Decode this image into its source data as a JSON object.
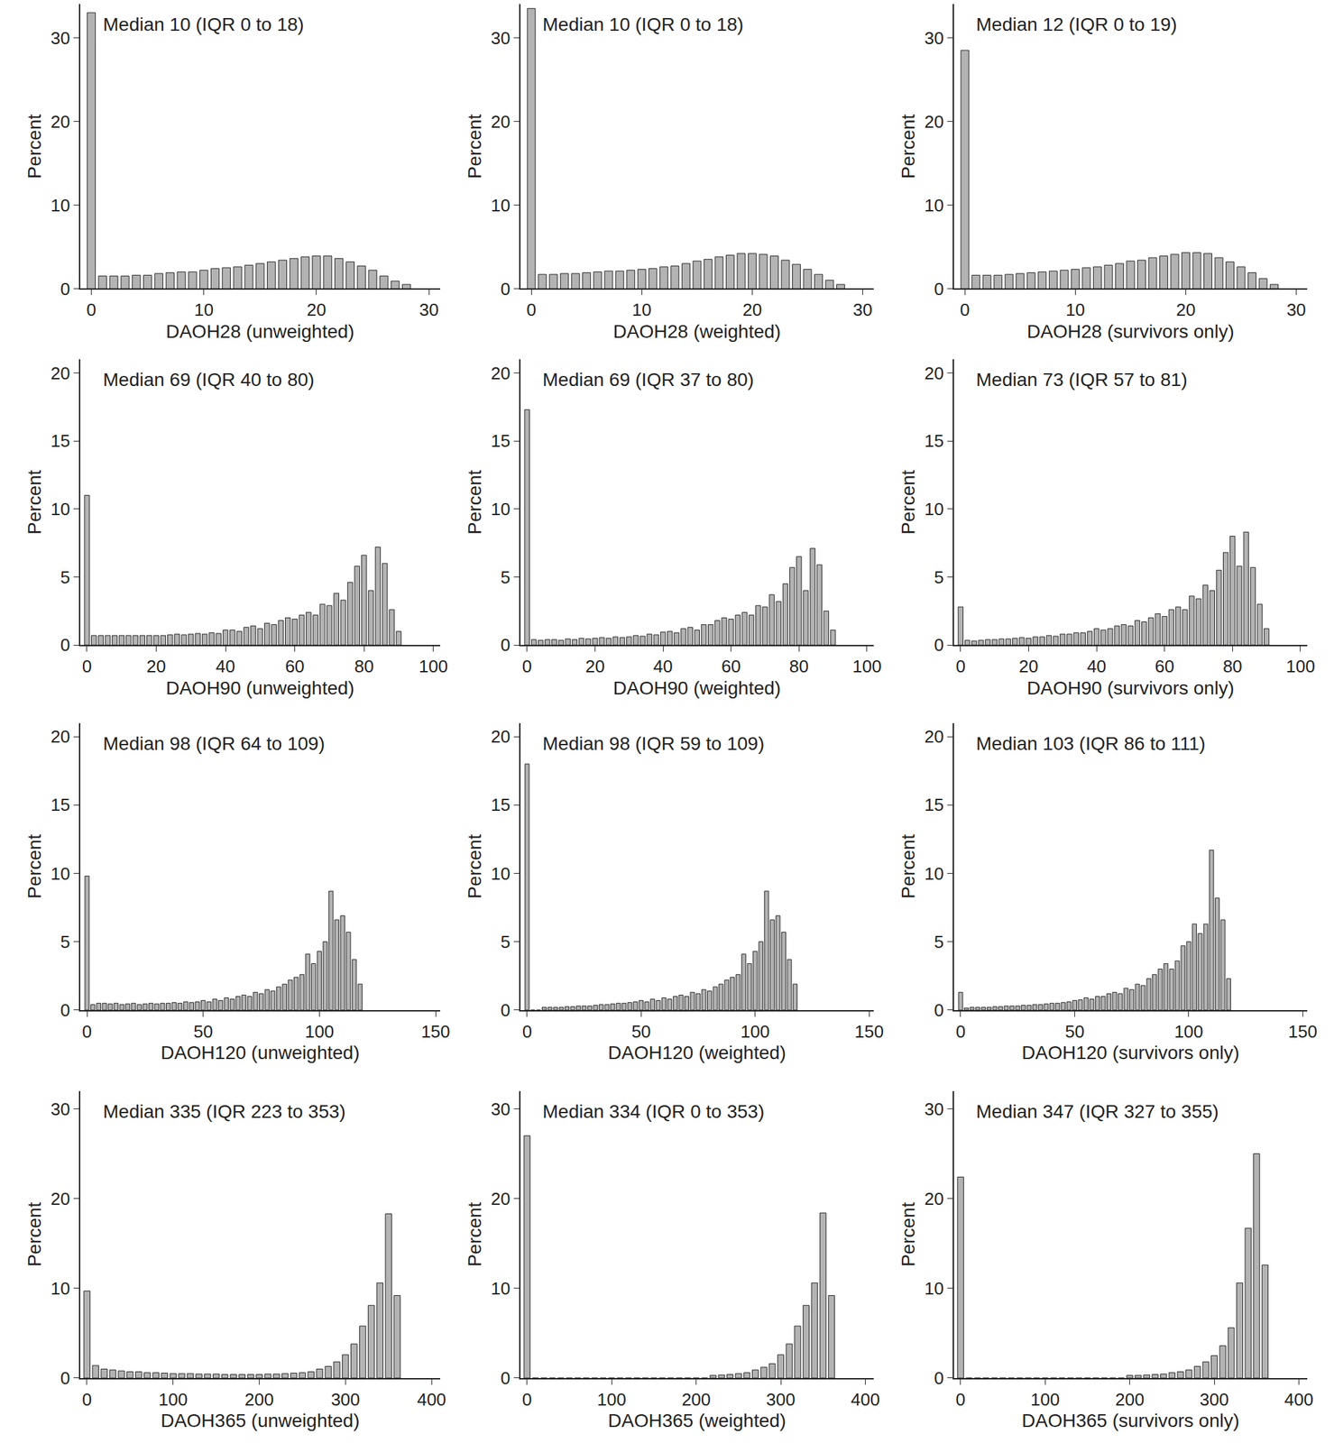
{
  "chart_data": [
    {
      "type": "histogram",
      "annotation": "Median 10 (IQR 0 to 18)",
      "x_label": "DAOH28 (unweighted)",
      "y_label": "Percent",
      "color": "#b3b3b3",
      "bins": [
        -0.5,
        0.5,
        1.5,
        2.5,
        3.5,
        4.5,
        5.5,
        6.5,
        7.5,
        8.5,
        9.5,
        10.5,
        11.5,
        12.5,
        13.5,
        14.5,
        15.5,
        16.5,
        17.5,
        18.5,
        19.5,
        20.5,
        21.5,
        22.5,
        23.5,
        24.5,
        25.5,
        26.5,
        27.5,
        28.5
      ],
      "values": [
        33,
        1.5,
        1.5,
        1.5,
        1.6,
        1.6,
        1.8,
        1.9,
        2.0,
        2.0,
        2.2,
        2.4,
        2.5,
        2.6,
        2.8,
        3.0,
        3.2,
        3.4,
        3.6,
        3.8,
        3.9,
        3.9,
        3.6,
        3.2,
        2.7,
        2.2,
        1.5,
        0.9,
        0.5
      ],
      "xlim": [
        -1,
        31
      ],
      "xticks": [
        0,
        10,
        20,
        30
      ],
      "ylim": [
        0,
        34
      ],
      "yticks": [
        0,
        10,
        20,
        30
      ]
    },
    {
      "type": "histogram",
      "annotation": "Median 10 (IQR 0 to 18)",
      "x_label": "DAOH28 (weighted)",
      "y_label": "Percent",
      "color": "#b3b3b3",
      "bins": [
        -0.5,
        0.5,
        1.5,
        2.5,
        3.5,
        4.5,
        5.5,
        6.5,
        7.5,
        8.5,
        9.5,
        10.5,
        11.5,
        12.5,
        13.5,
        14.5,
        15.5,
        16.5,
        17.5,
        18.5,
        19.5,
        20.5,
        21.5,
        22.5,
        23.5,
        24.5,
        25.5,
        26.5,
        27.5,
        28.5
      ],
      "values": [
        33.5,
        1.7,
        1.7,
        1.8,
        1.8,
        1.9,
        2.0,
        2.1,
        2.1,
        2.2,
        2.3,
        2.4,
        2.6,
        2.7,
        3.0,
        3.3,
        3.5,
        3.8,
        4.0,
        4.2,
        4.2,
        4.1,
        3.9,
        3.4,
        2.9,
        2.3,
        1.7,
        1.0,
        0.5
      ],
      "xlim": [
        -1,
        31
      ],
      "xticks": [
        0,
        10,
        20,
        30
      ],
      "ylim": [
        0,
        34
      ],
      "yticks": [
        0,
        10,
        20,
        30
      ]
    },
    {
      "type": "histogram",
      "annotation": "Median 12 (IQR 0 to 19)",
      "x_label": "DAOH28 (survivors only)",
      "y_label": "Percent",
      "color": "#b3b3b3",
      "bins": [
        -0.5,
        0.5,
        1.5,
        2.5,
        3.5,
        4.5,
        5.5,
        6.5,
        7.5,
        8.5,
        9.5,
        10.5,
        11.5,
        12.5,
        13.5,
        14.5,
        15.5,
        16.5,
        17.5,
        18.5,
        19.5,
        20.5,
        21.5,
        22.5,
        23.5,
        24.5,
        25.5,
        26.5,
        27.5,
        28.5
      ],
      "values": [
        28.5,
        1.6,
        1.6,
        1.6,
        1.7,
        1.8,
        1.9,
        2.0,
        2.1,
        2.2,
        2.3,
        2.5,
        2.6,
        2.8,
        3.0,
        3.3,
        3.4,
        3.7,
        3.9,
        4.1,
        4.3,
        4.3,
        4.2,
        3.7,
        3.2,
        2.6,
        1.9,
        1.2,
        0.5
      ],
      "xlim": [
        -1,
        31
      ],
      "xticks": [
        0,
        10,
        20,
        30
      ],
      "ylim": [
        0,
        34
      ],
      "yticks": [
        0,
        10,
        20,
        30
      ]
    },
    {
      "type": "histogram",
      "annotation": "Median 69 (IQR 40 to 80)",
      "x_label": "DAOH90 (unweighted)",
      "y_label": "Percent",
      "color": "#b3b3b3",
      "bins": [
        -1,
        1,
        3,
        5,
        7,
        9,
        11,
        13,
        15,
        17,
        19,
        21,
        23,
        25,
        27,
        29,
        31,
        33,
        35,
        37,
        39,
        41,
        43,
        45,
        47,
        49,
        51,
        53,
        55,
        57,
        59,
        61,
        63,
        65,
        67,
        69,
        71,
        73,
        75,
        77,
        79,
        81,
        83,
        85,
        87,
        89,
        91
      ],
      "values": [
        11,
        0.7,
        0.7,
        0.7,
        0.7,
        0.7,
        0.7,
        0.7,
        0.7,
        0.7,
        0.7,
        0.7,
        0.75,
        0.8,
        0.75,
        0.8,
        0.85,
        0.8,
        0.9,
        0.85,
        1.1,
        1.1,
        1.0,
        1.3,
        1.4,
        1.2,
        1.6,
        1.5,
        1.8,
        2.0,
        1.9,
        2.2,
        2.4,
        2.2,
        3.0,
        2.9,
        3.8,
        3.3,
        4.6,
        5.8,
        6.6,
        4.0,
        7.2,
        6.0,
        2.6,
        1.0
      ],
      "xlim": [
        -2,
        102
      ],
      "xticks": [
        0,
        20,
        40,
        60,
        80,
        100
      ],
      "ylim": [
        0,
        21
      ],
      "yticks": [
        0,
        5,
        10,
        15,
        20
      ]
    },
    {
      "type": "histogram",
      "annotation": "Median 69 (IQR 37 to 80)",
      "x_label": "DAOH90 (weighted)",
      "y_label": "Percent",
      "color": "#b3b3b3",
      "bins": [
        -1,
        1,
        3,
        5,
        7,
        9,
        11,
        13,
        15,
        17,
        19,
        21,
        23,
        25,
        27,
        29,
        31,
        33,
        35,
        37,
        39,
        41,
        43,
        45,
        47,
        49,
        51,
        53,
        55,
        57,
        59,
        61,
        63,
        65,
        67,
        69,
        71,
        73,
        75,
        77,
        79,
        81,
        83,
        85,
        87,
        89,
        91
      ],
      "values": [
        17.3,
        0.4,
        0.35,
        0.4,
        0.4,
        0.35,
        0.45,
        0.4,
        0.5,
        0.45,
        0.5,
        0.55,
        0.5,
        0.6,
        0.55,
        0.6,
        0.7,
        0.65,
        0.8,
        0.75,
        0.95,
        1.0,
        0.9,
        1.2,
        1.3,
        1.1,
        1.5,
        1.5,
        1.8,
        2.0,
        1.9,
        2.2,
        2.4,
        2.2,
        2.9,
        2.8,
        3.7,
        3.2,
        4.5,
        5.7,
        6.5,
        4.0,
        7.1,
        5.9,
        2.5,
        1.1
      ],
      "xlim": [
        -2,
        102
      ],
      "xticks": [
        0,
        20,
        40,
        60,
        80,
        100
      ],
      "ylim": [
        0,
        21
      ],
      "yticks": [
        0,
        5,
        10,
        15,
        20
      ]
    },
    {
      "type": "histogram",
      "annotation": "Median 73 (IQR 57 to 81)",
      "x_label": "DAOH90 (survivors only)",
      "y_label": "Percent",
      "color": "#b3b3b3",
      "bins": [
        -1,
        1,
        3,
        5,
        7,
        9,
        11,
        13,
        15,
        17,
        19,
        21,
        23,
        25,
        27,
        29,
        31,
        33,
        35,
        37,
        39,
        41,
        43,
        45,
        47,
        49,
        51,
        53,
        55,
        57,
        59,
        61,
        63,
        65,
        67,
        69,
        71,
        73,
        75,
        77,
        79,
        81,
        83,
        85,
        87,
        89,
        91
      ],
      "values": [
        2.8,
        0.35,
        0.3,
        0.35,
        0.4,
        0.4,
        0.45,
        0.45,
        0.5,
        0.55,
        0.5,
        0.6,
        0.6,
        0.7,
        0.65,
        0.8,
        0.8,
        0.9,
        0.9,
        1.0,
        1.2,
        1.1,
        1.2,
        1.4,
        1.5,
        1.4,
        1.8,
        1.7,
        2.0,
        2.3,
        2.1,
        2.6,
        2.8,
        2.6,
        3.6,
        3.4,
        4.4,
        4.0,
        5.5,
        6.8,
        8.0,
        5.8,
        8.3,
        5.7,
        3.0,
        1.2
      ],
      "xlim": [
        -2,
        102
      ],
      "xticks": [
        0,
        20,
        40,
        60,
        80,
        100
      ],
      "ylim": [
        0,
        21
      ],
      "yticks": [
        0,
        5,
        10,
        15,
        20
      ]
    },
    {
      "type": "histogram",
      "annotation": "Median 98 (IQR 64 to 109)",
      "x_label": "DAOH120 (unweighted)",
      "y_label": "Percent",
      "color": "#b3b3b3",
      "bins": [
        -1.25,
        1.25,
        3.75,
        6.25,
        8.75,
        11.25,
        13.75,
        16.25,
        18.75,
        21.25,
        23.75,
        26.25,
        28.75,
        31.25,
        33.75,
        36.25,
        38.75,
        41.25,
        43.75,
        46.25,
        48.75,
        51.25,
        53.75,
        56.25,
        58.75,
        61.25,
        63.75,
        66.25,
        68.75,
        71.25,
        73.75,
        76.25,
        78.75,
        81.25,
        83.75,
        86.25,
        88.75,
        91.25,
        93.75,
        96.25,
        98.75,
        101.25,
        103.75,
        106.25,
        108.75,
        111.25,
        113.75,
        116.25,
        118.75
      ],
      "values": [
        9.8,
        0.4,
        0.5,
        0.5,
        0.45,
        0.5,
        0.4,
        0.45,
        0.5,
        0.4,
        0.45,
        0.5,
        0.45,
        0.5,
        0.5,
        0.55,
        0.5,
        0.6,
        0.55,
        0.6,
        0.7,
        0.6,
        0.8,
        0.7,
        0.9,
        0.8,
        1.0,
        1.1,
        1.0,
        1.3,
        1.2,
        1.5,
        1.4,
        1.7,
        1.9,
        2.2,
        2.4,
        2.6,
        4.1,
        3.4,
        4.3,
        5.0,
        8.7,
        6.6,
        6.9,
        5.7,
        3.7,
        1.9
      ],
      "xlim": [
        -3,
        152
      ],
      "xticks": [
        0,
        50,
        100,
        150
      ],
      "ylim": [
        0,
        21
      ],
      "yticks": [
        0,
        5,
        10,
        15,
        20
      ]
    },
    {
      "type": "histogram",
      "annotation": "Median 98 (IQR 59 to 109)",
      "x_label": "DAOH120 (weighted)",
      "y_label": "Percent",
      "color": "#b3b3b3",
      "bins": [
        -1.25,
        1.25,
        3.75,
        6.25,
        8.75,
        11.25,
        13.75,
        16.25,
        18.75,
        21.25,
        23.75,
        26.25,
        28.75,
        31.25,
        33.75,
        36.25,
        38.75,
        41.25,
        43.75,
        46.25,
        48.75,
        51.25,
        53.75,
        56.25,
        58.75,
        61.25,
        63.75,
        66.25,
        68.75,
        71.25,
        73.75,
        76.25,
        78.75,
        81.25,
        83.75,
        86.25,
        88.75,
        91.25,
        93.75,
        96.25,
        98.75,
        101.25,
        103.75,
        106.25,
        108.75,
        111.25,
        113.75,
        116.25,
        118.75
      ],
      "values": [
        18,
        0,
        0,
        0.2,
        0.2,
        0.2,
        0.2,
        0.25,
        0.25,
        0.3,
        0.3,
        0.3,
        0.35,
        0.4,
        0.4,
        0.45,
        0.5,
        0.5,
        0.55,
        0.6,
        0.7,
        0.6,
        0.8,
        0.7,
        0.9,
        0.8,
        1.0,
        1.1,
        1.0,
        1.3,
        1.2,
        1.5,
        1.4,
        1.7,
        1.9,
        2.2,
        2.4,
        2.6,
        4.1,
        3.4,
        4.3,
        5.0,
        8.7,
        6.6,
        6.9,
        5.7,
        3.7,
        1.9
      ],
      "xlim": [
        -3,
        152
      ],
      "xticks": [
        0,
        50,
        100,
        150
      ],
      "ylim": [
        0,
        21
      ],
      "yticks": [
        0,
        5,
        10,
        15,
        20
      ]
    },
    {
      "type": "histogram",
      "annotation": "Median 103 (IQR 86 to 111)",
      "x_label": "DAOH120 (survivors only)",
      "y_label": "Percent",
      "color": "#b3b3b3",
      "bins": [
        -1.25,
        1.25,
        3.75,
        6.25,
        8.75,
        11.25,
        13.75,
        16.25,
        18.75,
        21.25,
        23.75,
        26.25,
        28.75,
        31.25,
        33.75,
        36.25,
        38.75,
        41.25,
        43.75,
        46.25,
        48.75,
        51.25,
        53.75,
        56.25,
        58.75,
        61.25,
        63.75,
        66.25,
        68.75,
        71.25,
        73.75,
        76.25,
        78.75,
        81.25,
        83.75,
        86.25,
        88.75,
        91.25,
        93.75,
        96.25,
        98.75,
        101.25,
        103.75,
        106.25,
        108.75,
        111.25,
        113.75,
        116.25,
        118.75
      ],
      "values": [
        1.3,
        0.15,
        0.2,
        0.2,
        0.2,
        0.2,
        0.25,
        0.25,
        0.3,
        0.3,
        0.3,
        0.35,
        0.35,
        0.4,
        0.4,
        0.45,
        0.5,
        0.5,
        0.55,
        0.6,
        0.7,
        0.75,
        0.9,
        0.8,
        1.0,
        1.0,
        1.2,
        1.3,
        1.2,
        1.6,
        1.5,
        1.9,
        1.8,
        2.3,
        2.6,
        3.0,
        3.4,
        3.0,
        3.6,
        4.7,
        5.0,
        6.3,
        5.6,
        6.3,
        11.7,
        8.2,
        6.6,
        2.3
      ],
      "xlim": [
        -3,
        152
      ],
      "xticks": [
        0,
        50,
        100,
        150
      ],
      "ylim": [
        0,
        21
      ],
      "yticks": [
        0,
        5,
        10,
        15,
        20
      ]
    },
    {
      "type": "histogram",
      "annotation": "Median 335 (IQR 223 to 353)",
      "x_label": "DAOH365 (unweighted)",
      "y_label": "Percent",
      "color": "#b3b3b3",
      "bins": [
        -5,
        5,
        15,
        25,
        35,
        45,
        55,
        65,
        75,
        85,
        95,
        105,
        115,
        125,
        135,
        145,
        155,
        165,
        175,
        185,
        195,
        205,
        215,
        225,
        235,
        245,
        255,
        265,
        275,
        285,
        295,
        305,
        315,
        325,
        335,
        345,
        355,
        365
      ],
      "values": [
        9.7,
        1.4,
        1.0,
        0.9,
        0.8,
        0.7,
        0.7,
        0.6,
        0.6,
        0.55,
        0.5,
        0.5,
        0.5,
        0.45,
        0.45,
        0.45,
        0.4,
        0.4,
        0.4,
        0.4,
        0.4,
        0.45,
        0.45,
        0.5,
        0.55,
        0.6,
        0.7,
        1.0,
        1.3,
        1.8,
        2.6,
        3.8,
        5.8,
        8.1,
        10.6,
        18.3,
        9.2
      ],
      "xlim": [
        -8,
        410
      ],
      "xticks": [
        0,
        100,
        200,
        300,
        400
      ],
      "ylim": [
        0,
        32
      ],
      "yticks": [
        0,
        10,
        20,
        30
      ]
    },
    {
      "type": "histogram",
      "annotation": "Median 334 (IQR 0 to 353)",
      "x_label": "DAOH365 (weighted)",
      "y_label": "Percent",
      "color": "#b3b3b3",
      "bins": [
        -5,
        5,
        15,
        25,
        35,
        45,
        55,
        65,
        75,
        85,
        95,
        105,
        115,
        125,
        135,
        145,
        155,
        165,
        175,
        185,
        195,
        205,
        215,
        225,
        235,
        245,
        255,
        265,
        275,
        285,
        295,
        305,
        315,
        325,
        335,
        345,
        355,
        365
      ],
      "values": [
        27,
        0,
        0,
        0,
        0,
        0,
        0,
        0,
        0,
        0,
        0,
        0,
        0,
        0,
        0,
        0,
        0,
        0,
        0,
        0,
        0,
        0,
        0.3,
        0.35,
        0.4,
        0.5,
        0.6,
        0.9,
        1.2,
        1.6,
        2.6,
        3.8,
        5.8,
        8.1,
        10.6,
        18.4,
        9.2
      ],
      "xlim": [
        -8,
        410
      ],
      "xticks": [
        0,
        100,
        200,
        300,
        400
      ],
      "ylim": [
        0,
        32
      ],
      "yticks": [
        0,
        10,
        20,
        30
      ]
    },
    {
      "type": "histogram",
      "annotation": "Median 347 (IQR 327 to 355)",
      "x_label": "DAOH365 (survivors only)",
      "y_label": "Percent",
      "color": "#b3b3b3",
      "bins": [
        -5,
        5,
        15,
        25,
        35,
        45,
        55,
        65,
        75,
        85,
        95,
        105,
        115,
        125,
        135,
        145,
        155,
        165,
        175,
        185,
        195,
        205,
        215,
        225,
        235,
        245,
        255,
        265,
        275,
        285,
        295,
        305,
        315,
        325,
        335,
        345,
        355,
        365
      ],
      "values": [
        22.4,
        0,
        0,
        0,
        0,
        0,
        0,
        0,
        0,
        0,
        0,
        0,
        0,
        0,
        0,
        0,
        0,
        0,
        0,
        0,
        0.3,
        0.3,
        0.35,
        0.4,
        0.45,
        0.6,
        0.7,
        0.9,
        1.3,
        1.8,
        2.5,
        3.6,
        5.6,
        10.6,
        16.7,
        25.0,
        12.6
      ],
      "xlim": [
        -8,
        410
      ],
      "xticks": [
        0,
        100,
        200,
        300,
        400
      ],
      "ylim": [
        0,
        32
      ],
      "yticks": [
        0,
        10,
        20,
        30
      ]
    }
  ]
}
